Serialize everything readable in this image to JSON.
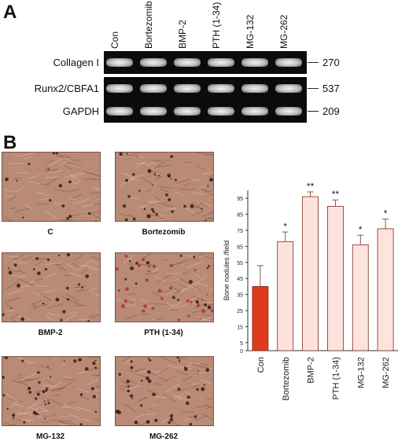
{
  "panel_a": {
    "letter": "A",
    "lanes": [
      "Con",
      "Bortezomib",
      "BMP-2",
      "PTH (1-34)",
      "MG-132",
      "MG-262"
    ],
    "rows": [
      {
        "label": "Collagen I",
        "size": "270"
      },
      {
        "label": "Runx2/CBFA1",
        "size": "537"
      },
      {
        "label": "GAPDH",
        "size": "209"
      }
    ]
  },
  "panel_b": {
    "letter": "B",
    "photos": [
      {
        "label": "C"
      },
      {
        "label": "Bortezomib"
      },
      {
        "label": "BMP-2"
      },
      {
        "label": "PTH (1-34)"
      },
      {
        "label": "MG-132"
      },
      {
        "label": "MG-262"
      }
    ]
  },
  "chart_data": {
    "type": "bar",
    "categories": [
      "Con",
      "Bortezomib",
      "BMP-2",
      "PTH (1-34)",
      "MG-132",
      "MG-262"
    ],
    "values": [
      40,
      68,
      96,
      90,
      66,
      76
    ],
    "errors": [
      13,
      6,
      3,
      4,
      6,
      6
    ],
    "significance": [
      "",
      "*",
      "**",
      "**",
      "*",
      "*"
    ],
    "ylabel": "Bone nodules /field",
    "ylim": [
      0,
      100
    ],
    "yticks": [
      0,
      5,
      15,
      25,
      35,
      45,
      55,
      65,
      75,
      85,
      95
    ],
    "yticklabels": [
      "0",
      "5",
      "15",
      "25",
      "35",
      "45",
      "55",
      "65",
      "75",
      "85",
      "95"
    ],
    "bar_colors": [
      "#e03a1e",
      "#fde3dd",
      "#fde3dd",
      "#fde3dd",
      "#fde3dd",
      "#fde3dd"
    ]
  }
}
